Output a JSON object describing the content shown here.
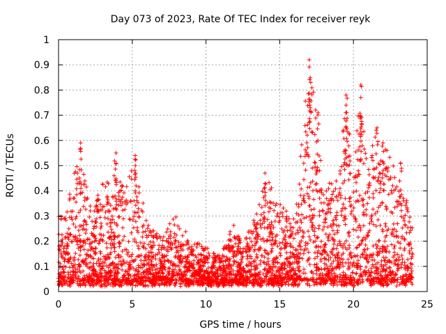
{
  "chart_data": {
    "type": "scatter",
    "title": "Day 073 of 2023, Rate Of TEC Index for receiver reyk",
    "xlabel": "GPS time / hours",
    "ylabel": "ROTI / TECUs",
    "xlim": [
      0,
      25
    ],
    "ylim": [
      0,
      1
    ],
    "xticks": [
      0,
      5,
      10,
      15,
      20,
      25
    ],
    "yticks": [
      0,
      0.1,
      0.2,
      0.3,
      0.4,
      0.5,
      0.6,
      0.7,
      0.8,
      0.9,
      1
    ],
    "xtick_labels": [
      "0",
      "5",
      "10",
      "15",
      "20",
      "25"
    ],
    "ytick_labels": [
      "0",
      "0.1",
      "0.2",
      "0.3",
      "0.4",
      "0.5",
      "0.6",
      "0.7",
      "0.8",
      "0.9",
      "1"
    ],
    "grid": true,
    "marker": "+",
    "color": "#ff0000",
    "x_extent": [
      0,
      24
    ],
    "activity_envelope": [
      {
        "x": 0.0,
        "y": 0.3
      },
      {
        "x": 0.5,
        "y": 0.32
      },
      {
        "x": 1.0,
        "y": 0.48
      },
      {
        "x": 1.5,
        "y": 0.59
      },
      {
        "x": 2.0,
        "y": 0.38
      },
      {
        "x": 2.5,
        "y": 0.36
      },
      {
        "x": 3.0,
        "y": 0.47
      },
      {
        "x": 3.5,
        "y": 0.45
      },
      {
        "x": 3.9,
        "y": 0.55
      },
      {
        "x": 4.5,
        "y": 0.4
      },
      {
        "x": 5.2,
        "y": 0.54
      },
      {
        "x": 6.0,
        "y": 0.27
      },
      {
        "x": 7.0,
        "y": 0.22
      },
      {
        "x": 8.0,
        "y": 0.31
      },
      {
        "x": 9.0,
        "y": 0.2
      },
      {
        "x": 10.0,
        "y": 0.18
      },
      {
        "x": 11.0,
        "y": 0.14
      },
      {
        "x": 11.8,
        "y": 0.28
      },
      {
        "x": 12.5,
        "y": 0.18
      },
      {
        "x": 13.5,
        "y": 0.33
      },
      {
        "x": 14.0,
        "y": 0.47
      },
      {
        "x": 14.5,
        "y": 0.41
      },
      {
        "x": 15.0,
        "y": 0.35
      },
      {
        "x": 16.0,
        "y": 0.3
      },
      {
        "x": 17.0,
        "y": 0.92
      },
      {
        "x": 17.5,
        "y": 0.71
      },
      {
        "x": 18.0,
        "y": 0.42
      },
      {
        "x": 19.0,
        "y": 0.45
      },
      {
        "x": 19.5,
        "y": 0.78
      },
      {
        "x": 20.0,
        "y": 0.5
      },
      {
        "x": 20.5,
        "y": 0.82
      },
      {
        "x": 21.0,
        "y": 0.48
      },
      {
        "x": 21.5,
        "y": 0.65
      },
      {
        "x": 22.0,
        "y": 0.59
      },
      {
        "x": 22.5,
        "y": 0.55
      },
      {
        "x": 23.0,
        "y": 0.43
      },
      {
        "x": 23.5,
        "y": 0.41
      },
      {
        "x": 24.0,
        "y": 0.25
      }
    ],
    "spikes": [
      {
        "x": 1.5,
        "y": 0.59
      },
      {
        "x": 3.9,
        "y": 0.55
      },
      {
        "x": 5.2,
        "y": 0.54
      },
      {
        "x": 14.0,
        "y": 0.47
      },
      {
        "x": 17.0,
        "y": 0.92
      },
      {
        "x": 17.1,
        "y": 0.83
      },
      {
        "x": 17.6,
        "y": 0.71
      },
      {
        "x": 19.5,
        "y": 0.78
      },
      {
        "x": 19.5,
        "y": 0.74
      },
      {
        "x": 20.5,
        "y": 0.82
      },
      {
        "x": 20.5,
        "y": 0.77
      },
      {
        "x": 21.6,
        "y": 0.65
      },
      {
        "x": 22.0,
        "y": 0.59
      },
      {
        "x": 23.2,
        "y": 0.51
      }
    ]
  }
}
